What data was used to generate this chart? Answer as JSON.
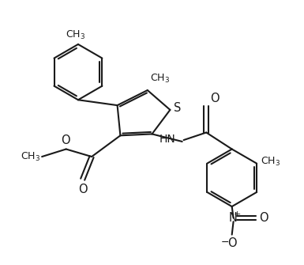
{
  "background_color": "#ffffff",
  "line_color": "#1a1a1a",
  "line_width": 1.5,
  "figsize": [
    3.85,
    3.35
  ],
  "dpi": 100,
  "xlim": [
    0,
    10
  ],
  "ylim": [
    0,
    8.7
  ]
}
